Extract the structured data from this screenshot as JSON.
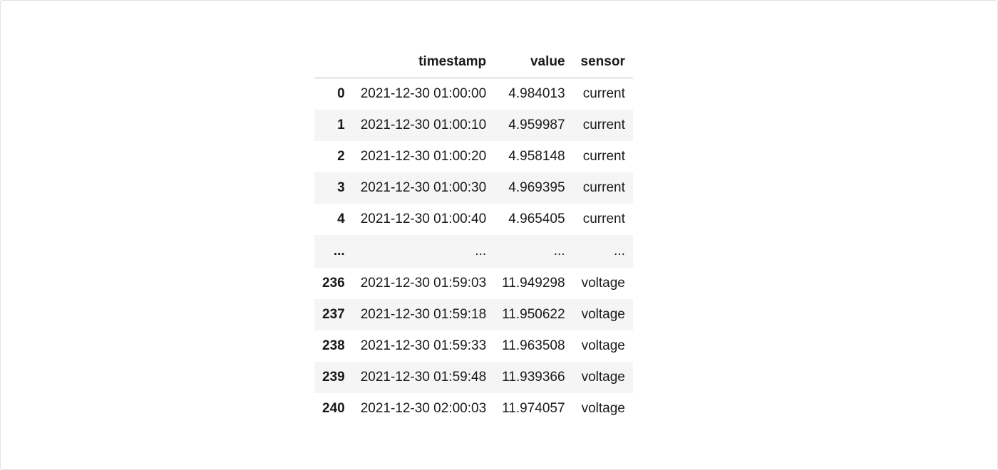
{
  "table": {
    "columns": [
      "timestamp",
      "value",
      "sensor"
    ],
    "index_header": "",
    "rows": [
      {
        "index": "0",
        "timestamp": "2021-12-30 01:00:00",
        "value": "4.984013",
        "sensor": "current"
      },
      {
        "index": "1",
        "timestamp": "2021-12-30 01:00:10",
        "value": "4.959987",
        "sensor": "current"
      },
      {
        "index": "2",
        "timestamp": "2021-12-30 01:00:20",
        "value": "4.958148",
        "sensor": "current"
      },
      {
        "index": "3",
        "timestamp": "2021-12-30 01:00:30",
        "value": "4.969395",
        "sensor": "current"
      },
      {
        "index": "4",
        "timestamp": "2021-12-30 01:00:40",
        "value": "4.965405",
        "sensor": "current"
      },
      {
        "index": "...",
        "timestamp": "...",
        "value": "...",
        "sensor": "..."
      },
      {
        "index": "236",
        "timestamp": "2021-12-30 01:59:03",
        "value": "11.949298",
        "sensor": "voltage"
      },
      {
        "index": "237",
        "timestamp": "2021-12-30 01:59:18",
        "value": "11.950622",
        "sensor": "voltage"
      },
      {
        "index": "238",
        "timestamp": "2021-12-30 01:59:33",
        "value": "11.963508",
        "sensor": "voltage"
      },
      {
        "index": "239",
        "timestamp": "2021-12-30 01:59:48",
        "value": "11.939366",
        "sensor": "voltage"
      },
      {
        "index": "240",
        "timestamp": "2021-12-30 02:00:03",
        "value": "11.974057",
        "sensor": "voltage"
      }
    ]
  }
}
